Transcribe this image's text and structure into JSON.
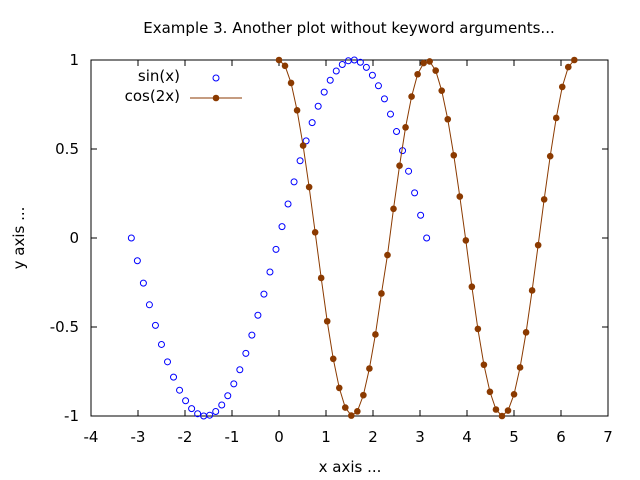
{
  "chart_data": {
    "type": "line",
    "title": "Example 3. Another plot without keyword arguments...",
    "xlabel": "x axis ...",
    "ylabel": "y axis ...",
    "xlim": [
      -4,
      7
    ],
    "ylim": [
      -1,
      1
    ],
    "xticks": [
      -4,
      -3,
      -2,
      -1,
      0,
      1,
      2,
      3,
      4,
      5,
      6,
      7
    ],
    "yticks": [
      -1,
      -0.5,
      0,
      0.5,
      1
    ],
    "xtick_labels": [
      "-4",
      "-3",
      "-2",
      "-1",
      "0",
      "1",
      "2",
      "3",
      "4",
      "5",
      "6",
      "7"
    ],
    "ytick_labels": [
      "-1",
      "-0.5",
      "0",
      "0.5",
      "1"
    ],
    "grid": false,
    "legend_position": "top-left",
    "series": [
      {
        "name": "sin(x)",
        "style": "open-circle-markers",
        "color": "#0000ff",
        "x": [
          -3.1416,
          -3.0134,
          -2.8851,
          -2.7569,
          -2.6287,
          -2.5005,
          -2.3722,
          -2.244,
          -2.1158,
          -1.9875,
          -1.8593,
          -1.7311,
          -1.6029,
          -1.4746,
          -1.3464,
          -1.2182,
          -1.0899,
          -0.9617,
          -0.8335,
          -0.7053,
          -0.577,
          -0.4488,
          -0.3206,
          -0.1923,
          -0.0641,
          0.0641,
          0.1923,
          0.3206,
          0.4488,
          0.577,
          0.7053,
          0.8335,
          0.9617,
          1.0899,
          1.2182,
          1.3464,
          1.4746,
          1.6029,
          1.7311,
          1.8593,
          1.9875,
          2.1158,
          2.244,
          2.3722,
          2.5005,
          2.6287,
          2.7569,
          2.8851,
          3.0134,
          3.1416
        ],
        "y": [
          0.0,
          -0.1279,
          -0.2537,
          -0.3753,
          -0.4907,
          -0.5981,
          -0.6957,
          -0.7818,
          -0.8551,
          -0.9143,
          -0.9587,
          -0.9874,
          -1.0,
          -0.9955,
          -0.9748,
          -0.938,
          -0.8862,
          -0.8197,
          -0.7403,
          -0.6482,
          -0.5455,
          -0.4339,
          -0.3151,
          -0.1912,
          -0.0641,
          0.0641,
          0.1912,
          0.3151,
          0.4339,
          0.5455,
          0.6482,
          0.7403,
          0.8197,
          0.8862,
          0.938,
          0.9748,
          0.9955,
          1.0,
          0.9874,
          0.9587,
          0.9143,
          0.8551,
          0.7818,
          0.6957,
          0.5981,
          0.4907,
          0.3753,
          0.2537,
          0.1279,
          0.0
        ]
      },
      {
        "name": "cos(2x)",
        "style": "line-with-filled-circles",
        "color": "#8b3a00",
        "x": [
          0.0,
          0.1282,
          0.2565,
          0.3847,
          0.5129,
          0.6411,
          0.7694,
          0.8976,
          1.0258,
          1.1541,
          1.2823,
          1.4105,
          1.5387,
          1.667,
          1.7952,
          1.9234,
          2.0516,
          2.1799,
          2.3081,
          2.4363,
          2.5646,
          2.6928,
          2.821,
          2.9492,
          3.0775,
          3.2057,
          3.3339,
          3.4622,
          3.5904,
          3.7186,
          3.8468,
          3.9751,
          4.1033,
          4.2315,
          4.3597,
          4.488,
          4.6162,
          4.7444,
          4.8727,
          5.0009,
          5.1291,
          5.2573,
          5.3856,
          5.5138,
          5.642,
          5.7703,
          5.8985,
          6.0267,
          6.1549,
          6.2832
        ],
        "y": [
          1.0,
          0.9673,
          0.8713,
          0.7172,
          0.5191,
          0.2863,
          0.032,
          -0.2244,
          -0.4677,
          -0.6785,
          -0.8423,
          -0.9528,
          -0.9978,
          -0.9739,
          -0.8828,
          -0.7332,
          -0.5418,
          -0.3117,
          -0.0959,
          0.1638,
          0.4062,
          0.6216,
          0.7946,
          0.92,
          0.9829,
          0.992,
          0.9404,
          0.8277,
          0.6671,
          0.4649,
          0.2327,
          -0.0136,
          -0.2738,
          -0.5107,
          -0.7121,
          -0.864,
          -0.9635,
          -1.0,
          -0.9693,
          -0.8781,
          -0.7273,
          -0.5301,
          -0.2947,
          -0.0401,
          0.217,
          0.4597,
          0.6745,
          0.8489,
          0.9603,
          1.0
        ]
      }
    ]
  }
}
